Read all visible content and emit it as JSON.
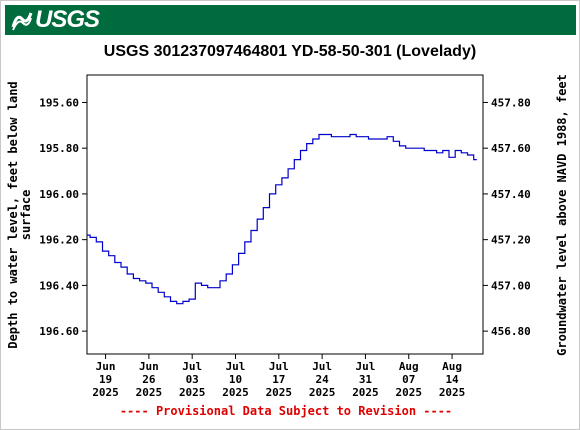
{
  "banner": {
    "logo_text": "USGS",
    "logo_icon": "usgs-wave-icon",
    "color": "#006b3c"
  },
  "chart_data": {
    "type": "line",
    "title": "USGS 301237097464801 YD-58-50-301 (Lovelady)",
    "ylabel_left": [
      "Depth to water level, feet below land",
      "surface"
    ],
    "ylabel_right": "Groundwater level above NAVD 1988, feet",
    "provisional_note": "---- Provisional Data Subject to Revision ----",
    "line_color": "#0000cc",
    "note_color": "#e00000",
    "y_left_inverted": true,
    "y_left_range": [
      196.7,
      195.48
    ],
    "y_left_ticks": [
      "195.60",
      "195.80",
      "196.00",
      "196.20",
      "196.40",
      "196.60"
    ],
    "y_right_ticks": [
      "457.80",
      "457.60",
      "457.40",
      "457.20",
      "457.00",
      "456.80"
    ],
    "x_range": [
      "2025-06-16",
      "2025-08-19"
    ],
    "x_ticks": [
      {
        "date": "2025-06-19",
        "month": "Jun",
        "day": "19",
        "year": "2025"
      },
      {
        "date": "2025-06-26",
        "month": "Jun",
        "day": "26",
        "year": "2025"
      },
      {
        "date": "2025-07-03",
        "month": "Jul",
        "day": "03",
        "year": "2025"
      },
      {
        "date": "2025-07-10",
        "month": "Jul",
        "day": "10",
        "year": "2025"
      },
      {
        "date": "2025-07-17",
        "month": "Jul",
        "day": "17",
        "year": "2025"
      },
      {
        "date": "2025-07-24",
        "month": "Jul",
        "day": "24",
        "year": "2025"
      },
      {
        "date": "2025-07-31",
        "month": "Jul",
        "day": "31",
        "year": "2025"
      },
      {
        "date": "2025-08-07",
        "month": "Aug",
        "day": "07",
        "year": "2025"
      },
      {
        "date": "2025-08-14",
        "month": "Aug",
        "day": "14",
        "year": "2025"
      }
    ],
    "series": [
      {
        "x": [
          "2025-06-16",
          "2025-06-17",
          "2025-06-18",
          "2025-06-19",
          "2025-06-20",
          "2025-06-21",
          "2025-06-22",
          "2025-06-23",
          "2025-06-24",
          "2025-06-25",
          "2025-06-26",
          "2025-06-27",
          "2025-06-28",
          "2025-06-29",
          "2025-06-30",
          "2025-07-01",
          "2025-07-02",
          "2025-07-03",
          "2025-07-04",
          "2025-07-05",
          "2025-07-06",
          "2025-07-07",
          "2025-07-08",
          "2025-07-09",
          "2025-07-10",
          "2025-07-11",
          "2025-07-12",
          "2025-07-13",
          "2025-07-14",
          "2025-07-15",
          "2025-07-16",
          "2025-07-17",
          "2025-07-18",
          "2025-07-19",
          "2025-07-20",
          "2025-07-21",
          "2025-07-22",
          "2025-07-23",
          "2025-07-24",
          "2025-07-25",
          "2025-07-26",
          "2025-07-27",
          "2025-07-28",
          "2025-07-29",
          "2025-07-30",
          "2025-07-31",
          "2025-08-01",
          "2025-08-02",
          "2025-08-03",
          "2025-08-04",
          "2025-08-05",
          "2025-08-06",
          "2025-08-07",
          "2025-08-08",
          "2025-08-09",
          "2025-08-10",
          "2025-08-11",
          "2025-08-12",
          "2025-08-13",
          "2025-08-14",
          "2025-08-15",
          "2025-08-16",
          "2025-08-17",
          "2025-08-18"
        ],
        "values": [
          196.18,
          196.19,
          196.21,
          196.25,
          196.27,
          196.3,
          196.32,
          196.35,
          196.37,
          196.38,
          196.39,
          196.41,
          196.43,
          196.45,
          196.47,
          196.48,
          196.47,
          196.46,
          196.39,
          196.4,
          196.41,
          196.41,
          196.38,
          196.35,
          196.31,
          196.26,
          196.21,
          196.16,
          196.11,
          196.06,
          196.0,
          195.96,
          195.93,
          195.89,
          195.85,
          195.81,
          195.78,
          195.76,
          195.74,
          195.74,
          195.75,
          195.75,
          195.75,
          195.74,
          195.75,
          195.75,
          195.76,
          195.76,
          195.76,
          195.75,
          195.77,
          195.79,
          195.8,
          195.8,
          195.8,
          195.81,
          195.81,
          195.82,
          195.81,
          195.84,
          195.81,
          195.82,
          195.83,
          195.85
        ]
      }
    ]
  }
}
